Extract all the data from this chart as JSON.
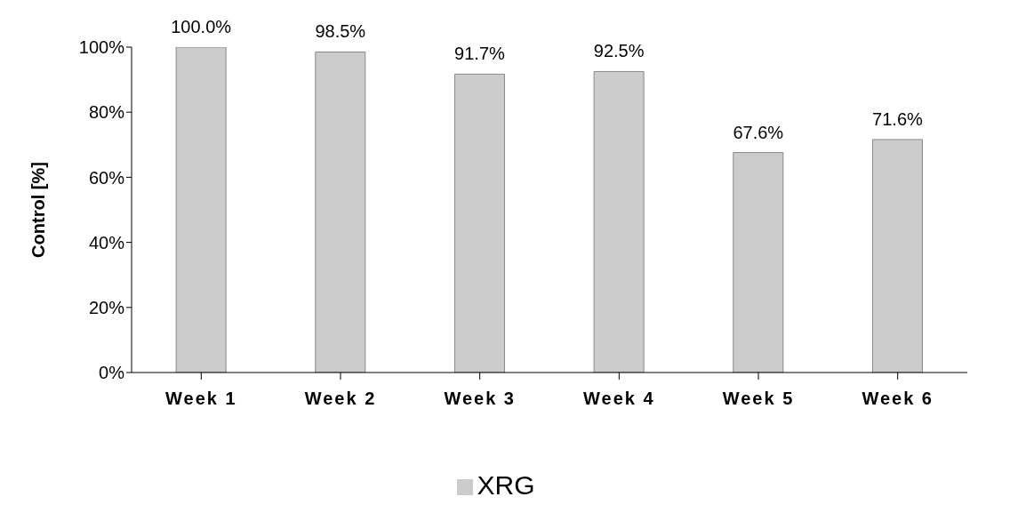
{
  "chart_data": {
    "type": "bar",
    "ylabel": "Control [%]",
    "categories": [
      "Week 1",
      "Week 2",
      "Week 3",
      "Week 4",
      "Week 5",
      "Week 6"
    ],
    "series": [
      {
        "name": "XRG",
        "color": "#cccccc",
        "values": [
          100.0,
          98.5,
          91.7,
          92.5,
          67.6,
          71.6
        ],
        "value_labels": [
          "100.0%",
          "98.5%",
          "91.7%",
          "92.5%",
          "67.6%",
          "71.6%"
        ]
      }
    ],
    "ylim": [
      0,
      100
    ],
    "yticks": [
      {
        "value": 0,
        "label": "0%"
      },
      {
        "value": 20,
        "label": "20%"
      },
      {
        "value": 40,
        "label": "40%"
      },
      {
        "value": 60,
        "label": "60%"
      },
      {
        "value": 80,
        "label": "80%"
      },
      {
        "value": 100,
        "label": "100%"
      }
    ],
    "grid": false,
    "legend": "bottom"
  }
}
